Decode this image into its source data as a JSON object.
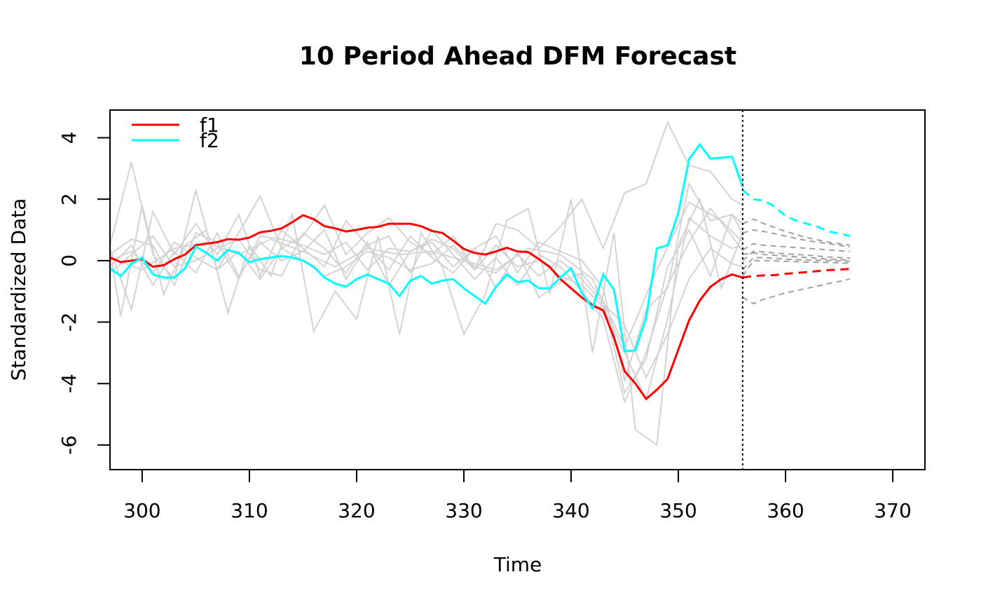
{
  "chart_data": {
    "type": "line",
    "title": "10 Period Ahead DFM Forecast",
    "xlabel": "Time",
    "ylabel": "Standardized Data",
    "xlim": [
      297,
      373
    ],
    "ylim": [
      -6.8,
      4.9
    ],
    "x_ticks": [
      "300",
      "310",
      "320",
      "330",
      "340",
      "350",
      "360",
      "370"
    ],
    "y_ticks": [
      "-6",
      "-4",
      "-2",
      "0",
      "2",
      "4"
    ],
    "forecast_origin": 356,
    "legend": {
      "placement": "top-left",
      "entries": [
        "f1",
        "f2"
      ]
    },
    "colors": {
      "f1": "#ff0000",
      "f2": "#00ffff",
      "background_series": "#d3d3d3",
      "forecast_series": "#a0a0a0"
    },
    "series": [
      {
        "name": "f1",
        "x": [
          297,
          298,
          299,
          300,
          301,
          302,
          303,
          304,
          305,
          306,
          307,
          308,
          309,
          310,
          311,
          312,
          313,
          314,
          315,
          316,
          317,
          318,
          319,
          320,
          321,
          322,
          323,
          324,
          325,
          326,
          327,
          328,
          329,
          330,
          331,
          332,
          333,
          334,
          335,
          336,
          337,
          338,
          339,
          340,
          341,
          342,
          343,
          344,
          345,
          346,
          347,
          348,
          349,
          350,
          351,
          352,
          353,
          354,
          355,
          356
        ],
        "y": [
          0.1,
          -0.05,
          0.0,
          0.05,
          -0.2,
          -0.15,
          0.05,
          0.2,
          0.5,
          0.55,
          0.6,
          0.7,
          0.68,
          0.75,
          0.92,
          0.97,
          1.05,
          1.25,
          1.48,
          1.35,
          1.12,
          1.05,
          0.95,
          1.0,
          1.07,
          1.1,
          1.2,
          1.2,
          1.2,
          1.12,
          0.97,
          0.9,
          0.65,
          0.38,
          0.25,
          0.2,
          0.3,
          0.42,
          0.3,
          0.28,
          0.05,
          -0.2,
          -0.6,
          -0.9,
          -1.2,
          -1.45,
          -1.62,
          -2.5,
          -3.6,
          -4.0,
          -4.5,
          -4.2,
          -3.85,
          -2.9,
          -1.95,
          -1.3,
          -0.85,
          -0.6,
          -0.45,
          -0.55
        ]
      },
      {
        "name": "f2",
        "x": [
          297,
          298,
          299,
          300,
          301,
          302,
          303,
          304,
          305,
          306,
          307,
          308,
          309,
          310,
          311,
          312,
          313,
          314,
          315,
          316,
          317,
          318,
          319,
          320,
          321,
          322,
          323,
          324,
          325,
          326,
          327,
          328,
          329,
          330,
          331,
          332,
          333,
          334,
          335,
          336,
          337,
          338,
          339,
          340,
          341,
          342,
          343,
          344,
          345,
          346,
          347,
          348,
          349,
          350,
          351,
          352,
          353,
          354,
          355,
          356
        ],
        "y": [
          -0.25,
          -0.5,
          -0.1,
          0.1,
          -0.45,
          -0.55,
          -0.55,
          -0.25,
          0.45,
          0.25,
          0.0,
          0.35,
          0.25,
          -0.05,
          0.05,
          0.1,
          0.15,
          0.1,
          0.0,
          -0.2,
          -0.55,
          -0.75,
          -0.85,
          -0.6,
          -0.45,
          -0.6,
          -0.75,
          -1.15,
          -0.65,
          -0.5,
          -0.75,
          -0.65,
          -0.6,
          -0.9,
          -1.15,
          -1.4,
          -0.85,
          -0.45,
          -0.7,
          -0.65,
          -0.9,
          -0.9,
          -0.55,
          -0.25,
          -1.05,
          -1.55,
          -0.45,
          -0.95,
          -2.95,
          -2.92,
          -1.85,
          0.4,
          0.5,
          1.55,
          3.3,
          3.78,
          3.32,
          3.35,
          3.38,
          2.4
        ]
      },
      {
        "name": "",
        "x": [
          356,
          357,
          358,
          359,
          360,
          361,
          362,
          363,
          364,
          365,
          366
        ],
        "y": [
          2.3,
          2.0,
          1.95,
          1.75,
          1.45,
          1.3,
          1.2,
          1.1,
          0.95,
          0.88,
          0.8
        ]
      },
      {
        "name": "",
        "x": [
          356,
          357,
          358,
          359,
          360,
          361,
          362,
          363,
          364,
          365,
          366
        ],
        "y": [
          -0.55,
          -0.5,
          -0.48,
          -0.47,
          -0.43,
          -0.4,
          -0.37,
          -0.34,
          -0.31,
          -0.29,
          -0.27
        ]
      }
    ],
    "background_series": [
      {
        "x": [
          297,
          299,
          301,
          303,
          305,
          307,
          309,
          311,
          313,
          315,
          317,
          319,
          321,
          323,
          325,
          327,
          329,
          331,
          333,
          335,
          337,
          339,
          341,
          343,
          345,
          347,
          349,
          351,
          353,
          355,
          356
        ],
        "y": [
          0.5,
          3.2,
          0.2,
          -0.6,
          2.3,
          -0.3,
          0.9,
          2.1,
          0.4,
          0.8,
          1.8,
          0.2,
          0.9,
          1.4,
          0.6,
          0.2,
          0.8,
          -0.3,
          1.2,
          1.0,
          0.4,
          1.1,
          2.0,
          0.4,
          2.2,
          2.5,
          4.5,
          3.1,
          2.9,
          2.0,
          1.8
        ]
      },
      {
        "x": [
          297,
          298,
          300,
          302,
          304,
          306,
          308,
          310,
          312,
          314,
          316,
          318,
          320,
          322,
          324,
          326,
          328,
          330,
          332,
          334,
          336,
          338,
          340,
          342,
          344,
          346,
          348,
          350,
          352,
          354,
          356
        ],
        "y": [
          0.3,
          -1.8,
          1.8,
          -1.1,
          0.5,
          1.0,
          -1.7,
          0.5,
          -0.5,
          1.5,
          -2.3,
          -1.0,
          -1.9,
          0.8,
          -2.4,
          0.9,
          -0.2,
          -2.4,
          -1.1,
          1.3,
          1.7,
          -1.1,
          2.0,
          -3.0,
          0.9,
          -5.5,
          -6.0,
          0.5,
          2.0,
          -0.9,
          0.9
        ]
      },
      {
        "x": [
          297,
          299,
          301,
          303,
          305,
          307,
          309,
          311,
          313,
          315,
          317,
          319,
          321,
          323,
          325,
          327,
          329,
          331,
          333,
          335,
          337,
          339,
          341,
          343,
          345,
          347,
          349,
          351,
          353,
          355,
          356
        ],
        "y": [
          -0.2,
          0.5,
          -0.8,
          0.3,
          -0.4,
          0.9,
          -0.5,
          0.6,
          0.0,
          0.3,
          1.0,
          -0.6,
          0.5,
          -0.3,
          0.8,
          0.1,
          -0.4,
          0.4,
          -0.9,
          0.3,
          -1.2,
          -0.7,
          -0.4,
          -1.3,
          -4.3,
          -3.2,
          -0.2,
          1.0,
          -0.5,
          1.5,
          1.2
        ]
      },
      {
        "x": [
          297,
          299,
          301,
          303,
          305,
          307,
          309,
          311,
          313,
          315,
          317,
          319,
          321,
          323,
          325,
          327,
          329,
          331,
          333,
          335,
          337,
          339,
          341,
          343,
          345,
          347,
          349,
          351,
          353,
          355,
          356
        ],
        "y": [
          0.4,
          -1.6,
          1.6,
          0.2,
          1.2,
          0.2,
          1.5,
          -0.5,
          1.0,
          0.4,
          -0.2,
          1.3,
          0.5,
          0.8,
          -0.4,
          1.0,
          0.2,
          -0.6,
          0.1,
          -0.8,
          0.2,
          -0.2,
          -1.0,
          -1.9,
          -4.6,
          -3.0,
          -0.8,
          0.6,
          1.7,
          0.8,
          0.3
        ]
      },
      {
        "x": [
          297,
          299,
          301,
          303,
          305,
          307,
          309,
          311,
          313,
          315,
          317,
          319,
          321,
          323,
          325,
          327,
          329,
          331,
          333,
          335,
          337,
          339,
          341,
          343,
          345,
          347,
          349,
          351,
          353,
          355,
          356
        ],
        "y": [
          0.0,
          0.3,
          -0.4,
          0.6,
          0.1,
          -0.3,
          0.3,
          -0.6,
          0.4,
          0.0,
          -0.5,
          -0.2,
          0.3,
          0.1,
          -0.3,
          -0.1,
          0.5,
          -0.2,
          -0.4,
          0.2,
          -0.5,
          0.0,
          -0.6,
          -1.4,
          -2.1,
          -3.8,
          -2.4,
          -0.6,
          0.4,
          -0.1,
          -0.2
        ]
      },
      {
        "x": [
          297,
          299,
          301,
          303,
          305,
          307,
          309,
          311,
          313,
          315,
          317,
          319,
          321,
          323,
          325,
          327,
          329,
          331,
          333,
          335,
          337,
          339,
          341,
          343,
          345,
          347,
          349,
          351,
          353,
          355,
          356
        ],
        "y": [
          0.2,
          0.7,
          0.5,
          -0.8,
          0.9,
          0.6,
          -0.6,
          0.8,
          0.7,
          0.5,
          0.2,
          0.6,
          -0.3,
          0.4,
          0.3,
          0.6,
          -0.2,
          0.4,
          0.8,
          -0.4,
          0.6,
          0.3,
          0.0,
          -0.9,
          -3.9,
          -1.6,
          -0.9,
          2.5,
          1.3,
          1.5,
          0.9
        ]
      },
      {
        "x": [
          297,
          299,
          301,
          303,
          305,
          307,
          309,
          311,
          313,
          315,
          317,
          319,
          321,
          323,
          325,
          327,
          329,
          331,
          333,
          335,
          337,
          339,
          341,
          343,
          345,
          347,
          349,
          351,
          353,
          355,
          356
        ],
        "y": [
          -0.4,
          0.2,
          0.8,
          -0.2,
          0.0,
          0.4,
          0.7,
          -0.3,
          -0.5,
          0.9,
          0.4,
          -0.4,
          0.6,
          -0.8,
          0.3,
          0.7,
          0.4,
          -0.3,
          0.5,
          -0.2,
          0.0,
          -0.5,
          -0.8,
          -1.5,
          -3.0,
          -4.5,
          -1.9,
          1.4,
          0.8,
          0.4,
          0.5
        ]
      },
      {
        "x": [
          297,
          300,
          303,
          306,
          309,
          312,
          315,
          318,
          321,
          324,
          327,
          330,
          333,
          336,
          339,
          342,
          345,
          348,
          351,
          354,
          356
        ],
        "y": [
          0.1,
          -0.3,
          0.4,
          0.6,
          0.2,
          0.7,
          0.3,
          -0.2,
          0.4,
          0.2,
          0.3,
          0.0,
          -0.3,
          0.4,
          0.2,
          -0.6,
          -2.8,
          -0.3,
          1.9,
          1.3,
          0.6
        ]
      }
    ],
    "forecast_series": [
      {
        "x": [
          356,
          357,
          358,
          360,
          362,
          364,
          366
        ],
        "y": [
          1.2,
          1.35,
          1.2,
          0.95,
          0.75,
          0.6,
          0.5
        ]
      },
      {
        "x": [
          356,
          357,
          358,
          360,
          362,
          364,
          366
        ],
        "y": [
          0.9,
          1.0,
          0.95,
          0.8,
          0.65,
          0.55,
          0.45
        ]
      },
      {
        "x": [
          356,
          357,
          358,
          360,
          362,
          364,
          366
        ],
        "y": [
          0.35,
          0.55,
          0.5,
          0.45,
          0.4,
          0.35,
          0.3
        ]
      },
      {
        "x": [
          356,
          357,
          358,
          360,
          362,
          364,
          366
        ],
        "y": [
          0.0,
          0.3,
          0.28,
          0.22,
          0.18,
          0.12,
          0.08
        ]
      },
      {
        "x": [
          356,
          357,
          358,
          360,
          362,
          364,
          366
        ],
        "y": [
          0.2,
          0.25,
          0.2,
          0.15,
          0.1,
          0.05,
          0.02
        ]
      },
      {
        "x": [
          356,
          357,
          358,
          360,
          362,
          364,
          366
        ],
        "y": [
          -0.3,
          0.1,
          0.1,
          0.05,
          0.02,
          0.0,
          -0.02
        ]
      },
      {
        "x": [
          356,
          357,
          358,
          360,
          362,
          364,
          366
        ],
        "y": [
          -0.5,
          0.0,
          0.0,
          -0.02,
          -0.05,
          -0.06,
          -0.08
        ]
      },
      {
        "x": [
          356,
          357,
          358,
          360,
          362,
          364,
          366
        ],
        "y": [
          -1.2,
          -1.4,
          -1.25,
          -1.05,
          -0.9,
          -0.75,
          -0.6
        ]
      }
    ]
  }
}
